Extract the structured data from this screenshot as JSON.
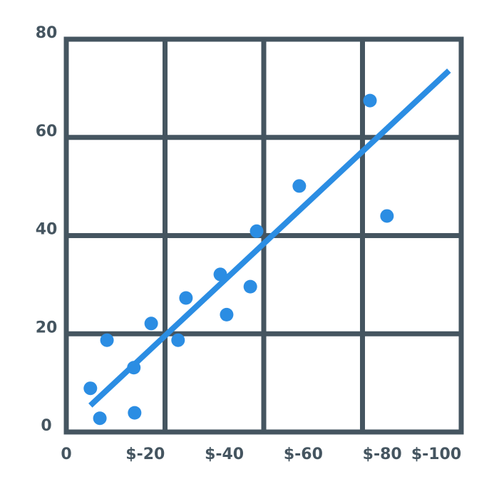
{
  "chart_data": {
    "type": "scatter",
    "x": [
      -6.1,
      -8.5,
      -10.3,
      -17.1,
      -17.3,
      -21.5,
      -28.3,
      -30.3,
      -39.0,
      -40.6,
      -46.6,
      -48.2,
      -59.0,
      -76.9,
      -81.2
    ],
    "y": [
      8.9,
      2.8,
      18.7,
      13.1,
      3.9,
      22.1,
      18.7,
      27.3,
      32.1,
      23.9,
      29.6,
      40.9,
      50.1,
      67.5,
      44.0
    ],
    "color": "#2b8de3",
    "trendline": {
      "x": [
        -6.1,
        -96.9
      ],
      "y": [
        5.4,
        73.6
      ],
      "color": "#2b8de3"
    },
    "xlim": [
      0,
      -100
    ],
    "xticks": [
      0,
      {
        "value": -20,
        "label": "$-20"
      },
      {
        "value": -40,
        "label": "$-40"
      },
      {
        "value": -60,
        "label": "$-60"
      },
      {
        "value": -80,
        "label": "$-80"
      },
      {
        "value": -100,
        "label": "$-100"
      }
    ],
    "ylim": [
      0,
      80
    ],
    "yticks": [
      0,
      20,
      40,
      60,
      80
    ],
    "grid": true
  }
}
